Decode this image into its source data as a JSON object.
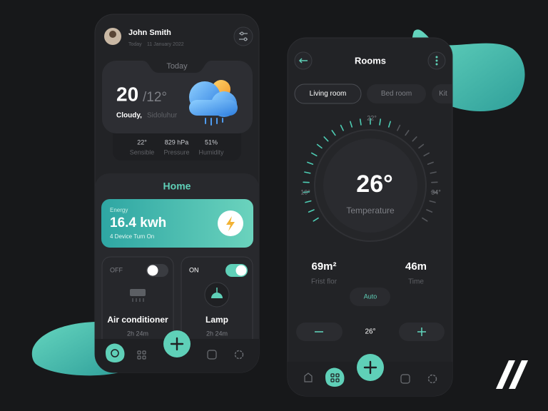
{
  "left_screen": {
    "profile": {
      "name": "John Smith",
      "date_prefix": "Today",
      "date": "11 January 2022"
    },
    "weather": {
      "header": "Today",
      "temperature": "20",
      "low": "/12°",
      "condition": "Cloudy,",
      "location": "Sidoluhur",
      "stats": [
        {
          "value": "22°",
          "label": "Sensible"
        },
        {
          "value": "829 hPa",
          "label": "Pressure"
        },
        {
          "value": "51%",
          "label": "Humidity"
        }
      ]
    },
    "home": {
      "title": "Home",
      "energy": {
        "label": "Energy",
        "value": "16.4 kwh",
        "caption": "4 Device Turn On"
      },
      "devices": [
        {
          "state": "OFF",
          "name": "Air conditioner",
          "duration": "2h 24m"
        },
        {
          "state": "ON",
          "name": "Lamp",
          "duration": "2h 24m"
        }
      ]
    }
  },
  "right_screen": {
    "title": "Rooms",
    "tabs": [
      "Living room",
      "Bed room",
      "Kit"
    ],
    "dial": {
      "top_label": "22°",
      "min_label": "10°",
      "max_label": "34°",
      "value": "26°",
      "caption": "Temperature"
    },
    "stats": [
      {
        "value": "69m²",
        "label": "Frist flor"
      },
      {
        "value": "46m",
        "label": "Time"
      }
    ],
    "mode": "Auto",
    "setpoint": "26°"
  }
}
